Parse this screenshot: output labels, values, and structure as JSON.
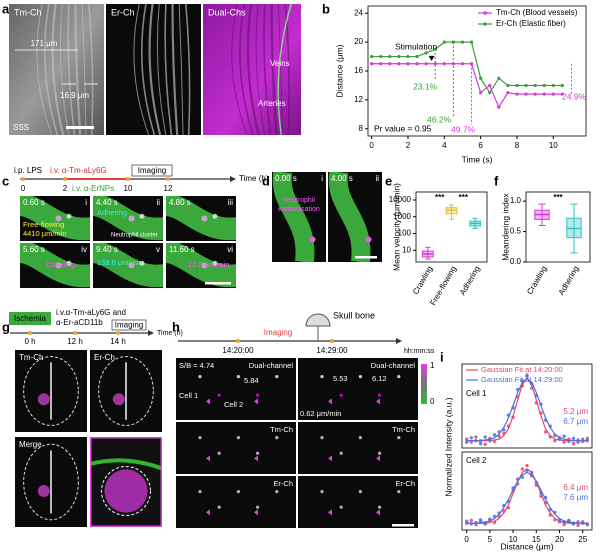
{
  "letters": [
    "a",
    "b",
    "c",
    "d",
    "e",
    "f",
    "g",
    "h",
    "i"
  ],
  "panels": {
    "a": {
      "images": [
        "Tm-Ch",
        "Er-Ch",
        "Dual-Chs"
      ],
      "labels": [
        "171 μm",
        "16.9 μm",
        "SSS",
        "Veins",
        "Arteries"
      ]
    },
    "c": {
      "timeline": [
        "i.p. LPS",
        "i.v. α-Tm-aLy6G",
        "Imaging",
        "i.v. α-ErNPs"
      ],
      "timeline_ticks": [
        "0",
        "2",
        "10",
        "12"
      ],
      "time_unit": "Time (h)",
      "frames": [
        {
          "time": "0.60 s",
          "index": "i",
          "notes": [
            "Free-flowing",
            "4410 μm/min"
          ]
        },
        {
          "time": "4.40 s",
          "index": "ii",
          "notes": [
            "Adhering",
            "Neutrophil cluster"
          ]
        },
        {
          "time": "4.80 s",
          "index": "iii"
        },
        {
          "time": "5.60 s",
          "index": "iv",
          "notes": [
            "Crawling"
          ]
        },
        {
          "time": "9.40 s",
          "index": "v",
          "notes": [
            "138.6 μm/min"
          ]
        },
        {
          "time": "11.60 s",
          "index": "vi",
          "notes": [
            "10.8 μm/min"
          ]
        }
      ]
    },
    "d": {
      "frames": [
        {
          "time": "0.00 s",
          "index": "i",
          "notes": [
            "Neutrophil",
            "extravasation"
          ]
        },
        {
          "time": "4.00 s",
          "index": "ii"
        }
      ]
    },
    "g": {
      "timeline": [
        "Ischemia",
        "i.v.α-Tm-aLy6G and",
        "α-Er-aCD11b",
        "Imaging"
      ],
      "timeline_ticks": [
        "0 h",
        "12 h",
        "14 h"
      ],
      "time_unit": "Time (h)",
      "images": [
        "Tm-Ch",
        "Er-Ch",
        "Merge"
      ]
    },
    "h": {
      "skull": "Skull bone",
      "imaging": "Imaging",
      "times": [
        "14:20:00",
        "14:29:00"
      ],
      "time_unit": "hh:mm:ss",
      "rows": [
        "Dual-channel",
        "Tm-Ch",
        "Er-Ch"
      ],
      "labels": [
        "S/B = 4.74",
        "5.84",
        "5.53",
        "6.12",
        "Cell 1",
        "Cell 2",
        "0.62 μm/min"
      ],
      "colorbar": [
        1,
        0
      ]
    }
  },
  "chart_data": [
    {
      "type": "line",
      "xlabel": "Time (s)",
      "ylabel": "Distance (μm)",
      "x": [
        0,
        0.5,
        1,
        1.5,
        2,
        2.5,
        3,
        3.5,
        4,
        4.5,
        5,
        5.5,
        6,
        6.5,
        7,
        7.5,
        8,
        8.5,
        9,
        9.5,
        10,
        10.5
      ],
      "series": [
        {
          "name": "Tm-Ch (Blood vessels)",
          "color": "#d63ad6",
          "values": [
            17,
            17,
            17,
            17,
            17,
            17,
            17,
            17,
            17,
            17,
            17,
            17,
            13,
            14,
            11,
            13,
            12.8,
            12.8,
            12.8,
            12.8,
            12.8,
            12.8
          ]
        },
        {
          "name": "Er-Ch (Elastic fiber)",
          "color": "#3a9e3a",
          "values": [
            18,
            18,
            18,
            18,
            18,
            18,
            18.5,
            19,
            20,
            20,
            20,
            20,
            15,
            13,
            15,
            14,
            14,
            14,
            14,
            14,
            14,
            14
          ]
        }
      ],
      "xlim": [
        -0.2,
        11.8
      ],
      "xticks": [
        0,
        2,
        4,
        6,
        8,
        10
      ],
      "ylim": [
        7,
        25
      ],
      "yticks": [
        8,
        12,
        16,
        20,
        24
      ],
      "legend": "top-right",
      "annotations": [
        "Stimulation",
        "23.1%",
        "46.2%",
        "49.7%",
        "24.9%",
        "Pr value = 0.95"
      ]
    },
    {
      "type": "box",
      "ylabel": "Mean velocity (μm/min)",
      "categories": [
        "Crawling",
        "Free-flowing",
        "Adhering"
      ],
      "colors": [
        "#d63ad6",
        "#e6c229",
        "#2ec4c4"
      ],
      "stats": [
        {
          "min": 3,
          "q1": 4,
          "median": 6,
          "q3": 9,
          "max": 15
        },
        {
          "min": 700,
          "q1": 1500,
          "median": 2500,
          "q3": 3500,
          "max": 5000
        },
        {
          "min": 200,
          "q1": 280,
          "median": 400,
          "q3": 550,
          "max": 800
        }
      ],
      "log": true,
      "ylim": [
        2,
        30000
      ],
      "yticks": [
        10,
        100,
        1000,
        10000
      ],
      "annotations": [
        "***",
        "***"
      ]
    },
    {
      "type": "box",
      "ylabel": "Meandering index",
      "categories": [
        "Crawling",
        "Adhering"
      ],
      "colors": [
        "#d63ad6",
        "#2ec4c4"
      ],
      "stats": [
        {
          "min": 0.6,
          "q1": 0.7,
          "median": 0.78,
          "q3": 0.85,
          "max": 0.95
        },
        {
          "min": 0.15,
          "q1": 0.4,
          "median": 0.55,
          "q3": 0.72,
          "max": 0.95
        }
      ],
      "ylim": [
        0,
        1.15
      ],
      "yticks": [
        {
          "value": 0,
          "label": "0.0"
        },
        {
          "value": 0.5,
          "label": "0.5"
        },
        {
          "value": 1,
          "label": "1.0"
        }
      ],
      "annotations": [
        "***"
      ]
    },
    {
      "type": "scatter",
      "title": "Cell 1",
      "ylabel": "Normalized Intensity (a.u.)",
      "x": [
        0,
        1,
        2,
        3,
        4,
        5,
        6,
        7,
        8,
        9,
        10,
        11,
        12,
        13,
        14,
        15,
        16,
        17,
        18,
        19,
        20,
        21,
        22,
        23,
        24,
        25,
        26
      ],
      "series": [
        {
          "name": "Gaussian Fit at 14:20:00",
          "color": "#e8446a",
          "values": [
            0.12,
            0.08,
            0.15,
            0.1,
            0.05,
            0.13,
            0.09,
            0.16,
            0.2,
            0.3,
            0.42,
            0.7,
            0.85,
            1,
            0.82,
            0.62,
            0.48,
            0.22,
            0.15,
            0.1,
            0.14,
            0.08,
            0.12,
            0.06,
            0.11,
            0.09,
            0.13
          ],
          "fit": [
            0.1,
            0.1,
            0.1,
            0.1,
            0.1,
            0.1,
            0.11,
            0.12,
            0.17,
            0.26,
            0.44,
            0.66,
            0.87,
            0.95,
            0.87,
            0.66,
            0.44,
            0.26,
            0.17,
            0.12,
            0.11,
            0.1,
            0.1,
            0.1,
            0.1,
            0.1,
            0.1
          ]
        },
        {
          "name": "Gaussian Fit at 14:29:00",
          "color": "#4a6fe0",
          "values": [
            0.08,
            0.14,
            0.1,
            0.06,
            0.15,
            0.1,
            0.18,
            0.22,
            0.25,
            0.45,
            0.55,
            0.8,
            0.92,
            0.98,
            0.88,
            0.72,
            0.6,
            0.38,
            0.3,
            0.17,
            0.12,
            0.16,
            0.09,
            0.13,
            0.08,
            0.12,
            0.1
          ],
          "fit": [
            0.1,
            0.1,
            0.1,
            0.1,
            0.11,
            0.12,
            0.14,
            0.19,
            0.28,
            0.41,
            0.58,
            0.76,
            0.9,
            0.95,
            0.9,
            0.76,
            0.58,
            0.41,
            0.28,
            0.19,
            0.14,
            0.12,
            0.11,
            0.1,
            0.1,
            0.1,
            0.1
          ]
        }
      ],
      "width_labels": [
        "5.2 μm",
        "6.7 μm"
      ],
      "xlim": [
        -1,
        27
      ],
      "ylim": [
        0,
        1.15
      ],
      "legend": "top-left"
    },
    {
      "type": "scatter",
      "title": "Cell 2",
      "xlabel": "Distance (μm)",
      "x": [
        0,
        1,
        2,
        3,
        4,
        5,
        6,
        7,
        8,
        9,
        10,
        11,
        12,
        13,
        14,
        15,
        16,
        17,
        18,
        19,
        20,
        21,
        22,
        23,
        24,
        25,
        26
      ],
      "series": [
        {
          "color": "#e8446a",
          "values": [
            0.1,
            0.14,
            0.08,
            0.12,
            0.09,
            0.15,
            0.11,
            0.2,
            0.28,
            0.33,
            0.58,
            0.68,
            0.9,
            0.95,
            0.8,
            0.66,
            0.5,
            0.4,
            0.22,
            0.15,
            0.12,
            0.08,
            0.13,
            0.1,
            0.07,
            0.12,
            0.09
          ],
          "fit": [
            0.1,
            0.1,
            0.1,
            0.1,
            0.1,
            0.11,
            0.13,
            0.17,
            0.25,
            0.37,
            0.54,
            0.71,
            0.85,
            0.9,
            0.85,
            0.71,
            0.54,
            0.37,
            0.25,
            0.17,
            0.13,
            0.11,
            0.1,
            0.1,
            0.1,
            0.1,
            0.1
          ]
        },
        {
          "color": "#4a6fe0",
          "values": [
            0.13,
            0.09,
            0.11,
            0.15,
            0.1,
            0.16,
            0.2,
            0.25,
            0.36,
            0.42,
            0.62,
            0.75,
            0.78,
            0.88,
            0.85,
            0.7,
            0.55,
            0.48,
            0.3,
            0.26,
            0.15,
            0.12,
            0.14,
            0.09,
            0.12,
            0.1,
            0.08
          ],
          "fit": [
            0.1,
            0.1,
            0.1,
            0.11,
            0.12,
            0.13,
            0.17,
            0.23,
            0.33,
            0.45,
            0.59,
            0.72,
            0.81,
            0.85,
            0.81,
            0.72,
            0.59,
            0.45,
            0.33,
            0.23,
            0.17,
            0.13,
            0.12,
            0.11,
            0.1,
            0.1,
            0.1
          ]
        }
      ],
      "width_labels": [
        "6.4 μm",
        "7.6 μm"
      ],
      "xlim": [
        -1,
        27
      ],
      "xticks": [
        0,
        5,
        10,
        15,
        20,
        25
      ],
      "ylim": [
        0,
        1.15
      ]
    }
  ]
}
